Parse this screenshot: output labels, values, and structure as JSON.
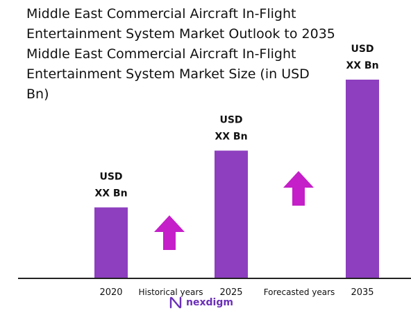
{
  "header": {
    "title_lines": [
      "Middle East Commercial Aircraft In-Flight",
      "Entertainment System Market Outlook to 2035"
    ],
    "subtitle_lines": [
      "Middle East Commercial Aircraft In-Flight",
      "Entertainment System Market Size (in USD",
      "Bn)"
    ]
  },
  "chart_data": {
    "type": "bar",
    "categories": [
      "2020",
      "2025",
      "2035"
    ],
    "values": [
      0.5,
      0.9,
      1.4
    ],
    "data_labels": [
      [
        "USD",
        "XX Bn"
      ],
      [
        "USD",
        "XX Bn"
      ],
      [
        "USD",
        "XX Bn"
      ]
    ],
    "period_labels": [
      "Historical years",
      "Forecasted years"
    ],
    "bar_color": "#8d3fbf",
    "arrow_color": "#c41fc8",
    "axis_color": "#222222",
    "grid": false,
    "ylim": [
      0,
      1.4
    ]
  },
  "brand": {
    "name": "nexdigm",
    "color": "#6b2fb8",
    "icon": "nexdigm-logo-icon"
  }
}
